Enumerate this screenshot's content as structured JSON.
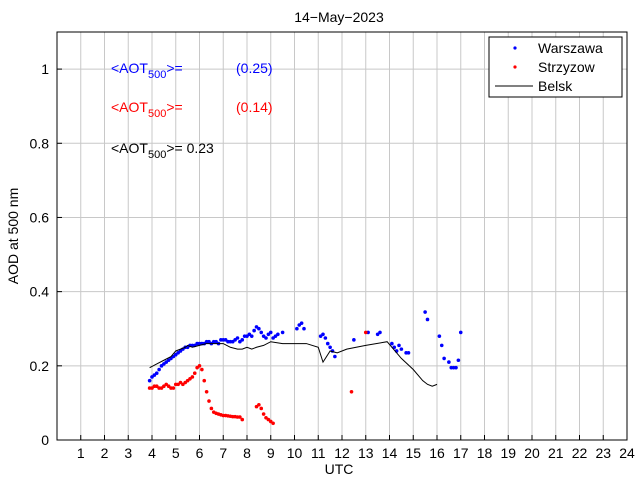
{
  "chart_data": {
    "type": "scatter",
    "title": "14−May−2023",
    "xlabel": "UTC",
    "ylabel": "AOD at 500 nm",
    "xlim": [
      0,
      24
    ],
    "ylim": [
      0,
      1.1
    ],
    "xticks": [
      "1",
      "2",
      "3",
      "4",
      "5",
      "6",
      "7",
      "8",
      "9",
      "10",
      "11",
      "12",
      "13",
      "14",
      "15",
      "16",
      "17",
      "18",
      "19",
      "20",
      "21",
      "22",
      "23",
      "24"
    ],
    "yticks": [
      "0",
      "0.2",
      "0.4",
      "0.6",
      "0.8",
      "1"
    ],
    "grid": true,
    "legend": {
      "placement": "top-right",
      "entries": [
        "Warszawa",
        "Strzyzow",
        "Belsk"
      ]
    },
    "annotations": [
      {
        "label": "<AOT",
        "sub": "500",
        "suffix": ">=",
        "value": "(0.25)",
        "color": "#0000ff"
      },
      {
        "label": "<AOT",
        "sub": "500",
        "suffix": ">=",
        "value": "(0.14)",
        "color": "#ff0000"
      },
      {
        "label": "<AOT",
        "sub": "500",
        "suffix": ">= 0.23",
        "value": "",
        "color": "#000000"
      }
    ],
    "series": [
      {
        "name": "Warszawa",
        "style": "points",
        "color": "#0000ff",
        "x": [
          3.9,
          4.0,
          4.1,
          4.2,
          4.3,
          4.4,
          4.5,
          4.6,
          4.7,
          4.8,
          4.9,
          5.0,
          5.1,
          5.2,
          5.3,
          5.4,
          5.5,
          5.6,
          5.7,
          5.8,
          5.9,
          6.0,
          6.1,
          6.2,
          6.3,
          6.4,
          6.5,
          6.6,
          6.7,
          6.8,
          6.9,
          7.0,
          7.1,
          7.2,
          7.3,
          7.4,
          7.5,
          7.6,
          7.7,
          7.8,
          7.9,
          8.0,
          8.1,
          8.2,
          8.3,
          8.4,
          8.5,
          8.6,
          8.7,
          8.8,
          8.9,
          9.0,
          9.1,
          9.2,
          9.3,
          9.5,
          10.1,
          10.2,
          10.3,
          10.4,
          11.1,
          11.2,
          11.3,
          11.4,
          11.5,
          11.6,
          11.7,
          12.5,
          13.1,
          13.5,
          13.6,
          14.1,
          14.2,
          14.3,
          14.4,
          14.5,
          14.7,
          14.8,
          15.5,
          15.6,
          16.1,
          16.2,
          16.3,
          16.5,
          16.6,
          16.7,
          16.8,
          16.9,
          17.0
        ],
        "y": [
          0.16,
          0.17,
          0.175,
          0.18,
          0.19,
          0.2,
          0.205,
          0.21,
          0.215,
          0.22,
          0.225,
          0.23,
          0.235,
          0.24,
          0.245,
          0.25,
          0.25,
          0.255,
          0.255,
          0.255,
          0.26,
          0.26,
          0.26,
          0.26,
          0.265,
          0.265,
          0.26,
          0.265,
          0.265,
          0.26,
          0.27,
          0.27,
          0.27,
          0.265,
          0.265,
          0.265,
          0.27,
          0.275,
          0.265,
          0.27,
          0.28,
          0.28,
          0.285,
          0.28,
          0.295,
          0.305,
          0.3,
          0.29,
          0.28,
          0.275,
          0.285,
          0.29,
          0.275,
          0.28,
          0.285,
          0.29,
          0.3,
          0.31,
          0.315,
          0.3,
          0.28,
          0.285,
          0.275,
          0.26,
          0.25,
          0.24,
          0.225,
          0.27,
          0.29,
          0.285,
          0.29,
          0.26,
          0.25,
          0.24,
          0.255,
          0.245,
          0.235,
          0.235,
          0.345,
          0.325,
          0.28,
          0.255,
          0.22,
          0.21,
          0.195,
          0.195,
          0.195,
          0.215,
          0.29
        ]
      },
      {
        "name": "Strzyzow",
        "style": "points",
        "color": "#ff0000",
        "x": [
          3.9,
          4.0,
          4.1,
          4.2,
          4.3,
          4.4,
          4.5,
          4.6,
          4.7,
          4.8,
          4.9,
          5.0,
          5.1,
          5.2,
          5.3,
          5.4,
          5.5,
          5.6,
          5.7,
          5.8,
          5.9,
          6.0,
          6.1,
          6.2,
          6.3,
          6.4,
          6.5,
          6.6,
          6.7,
          6.8,
          6.9,
          7.0,
          7.1,
          7.2,
          7.3,
          7.4,
          7.5,
          7.6,
          7.7,
          7.8,
          8.4,
          8.5,
          8.6,
          8.7,
          8.8,
          8.9,
          9.0,
          9.1,
          12.4,
          13.0
        ],
        "y": [
          0.14,
          0.14,
          0.145,
          0.145,
          0.14,
          0.14,
          0.145,
          0.15,
          0.145,
          0.14,
          0.14,
          0.15,
          0.15,
          0.155,
          0.15,
          0.155,
          0.16,
          0.165,
          0.17,
          0.18,
          0.195,
          0.2,
          0.19,
          0.16,
          0.13,
          0.105,
          0.085,
          0.075,
          0.072,
          0.07,
          0.068,
          0.066,
          0.066,
          0.065,
          0.064,
          0.063,
          0.063,
          0.062,
          0.062,
          0.055,
          0.09,
          0.095,
          0.085,
          0.07,
          0.06,
          0.055,
          0.05,
          0.045,
          0.13,
          0.29
        ]
      },
      {
        "name": "Belsk",
        "style": "line",
        "color": "#000000",
        "x": [
          3.9,
          4.2,
          4.5,
          4.8,
          5.0,
          5.2,
          5.4,
          5.5,
          5.7,
          6.0,
          6.3,
          6.6,
          7.0,
          7.3,
          7.6,
          7.8,
          8.0,
          8.2,
          8.4,
          8.7,
          9.0,
          9.5,
          10.0,
          10.5,
          11.0,
          11.2,
          11.5,
          11.8,
          12.2,
          13.0,
          13.9,
          14.5,
          15.0,
          15.4,
          15.6,
          15.8,
          16.0
        ],
        "y": [
          0.195,
          0.205,
          0.215,
          0.225,
          0.24,
          0.245,
          0.25,
          0.255,
          0.25,
          0.255,
          0.26,
          0.26,
          0.26,
          0.25,
          0.245,
          0.245,
          0.25,
          0.245,
          0.25,
          0.255,
          0.265,
          0.26,
          0.26,
          0.26,
          0.25,
          0.21,
          0.24,
          0.235,
          0.245,
          0.255,
          0.265,
          0.22,
          0.19,
          0.16,
          0.15,
          0.145,
          0.15
        ]
      }
    ]
  }
}
